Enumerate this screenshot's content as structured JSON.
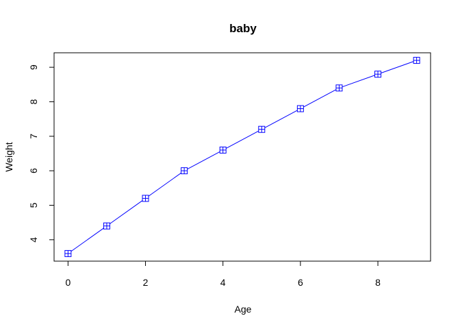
{
  "chart_data": {
    "type": "line",
    "title": "baby",
    "xlabel": "Age",
    "ylabel": "Weight",
    "x": [
      0,
      1,
      2,
      3,
      4,
      5,
      6,
      7,
      8,
      9
    ],
    "series": [
      {
        "values": [
          3.6,
          4.4,
          5.2,
          6.0,
          6.6,
          7.2,
          7.8,
          8.4,
          8.8,
          9.2
        ],
        "color": "#0000ff",
        "marker": "square-plus"
      }
    ],
    "xlim": [
      -0.36,
      9.36
    ],
    "ylim": [
      3.38,
      9.42
    ],
    "xticks": [
      0,
      2,
      4,
      6,
      8
    ],
    "yticks": [
      4,
      5,
      6,
      7,
      8,
      9
    ],
    "grid": false,
    "legend": "none"
  }
}
